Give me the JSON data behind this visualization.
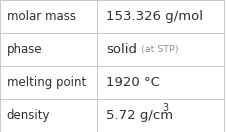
{
  "rows": [
    {
      "label": "molar mass",
      "value": "153.326 g/mol",
      "value2": null,
      "value2_small": false,
      "superscript": null
    },
    {
      "label": "phase",
      "value": "solid",
      "value2": "(at STP)",
      "value2_small": true,
      "superscript": null
    },
    {
      "label": "melting point",
      "value": "1920 °C",
      "value2": null,
      "value2_small": false,
      "superscript": null
    },
    {
      "label": "density",
      "value": "5.72 g/cm",
      "value2": "3",
      "value2_small": false,
      "superscript": true
    }
  ],
  "background_color": "#ffffff",
  "border_color": "#c8c8c8",
  "label_color": "#303030",
  "value_color": "#303030",
  "annot_color": "#909090",
  "label_fontsize": 8.5,
  "value_fontsize": 9.5,
  "annotation_fontsize": 6.8,
  "col_split": 0.435
}
